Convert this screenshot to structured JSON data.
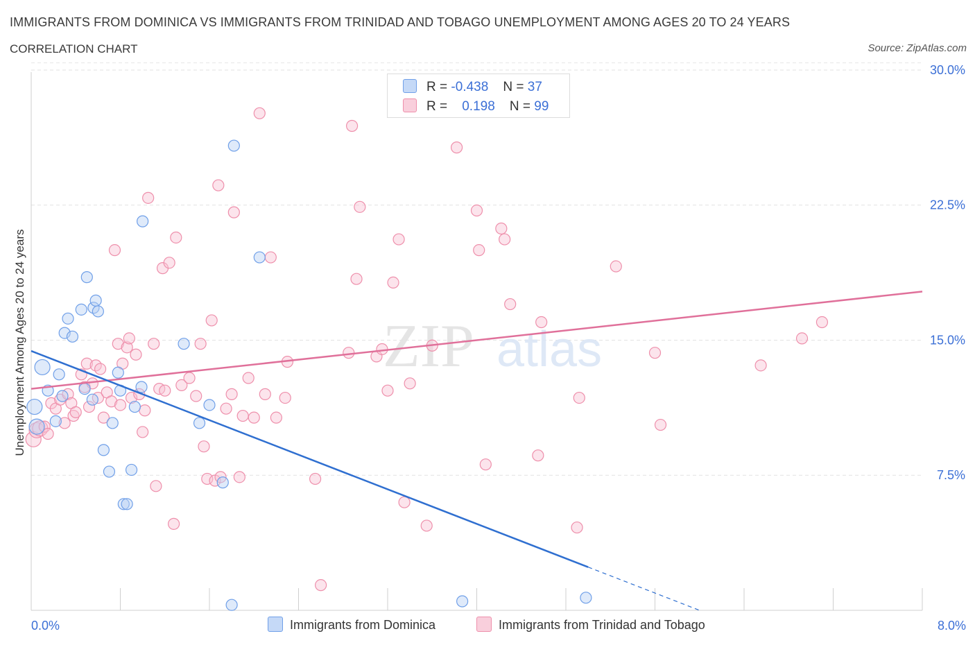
{
  "title": "IMMIGRANTS FROM DOMINICA VS IMMIGRANTS FROM TRINIDAD AND TOBAGO UNEMPLOYMENT AMONG AGES 20 TO 24 YEARS",
  "subtitle": "CORRELATION CHART",
  "source": "Source: ZipAtlas.com",
  "watermark": {
    "zip": "ZIP",
    "atlas": "atlas"
  },
  "legend": {
    "rows": [
      {
        "r_label": "R =",
        "r_value": "-0.438",
        "n_label": "N =",
        "n_value": "37"
      },
      {
        "r_label": "R =",
        "r_value": "0.198",
        "n_label": "N =",
        "n_value": "99"
      }
    ]
  },
  "bottom_legend": {
    "series1": "Immigrants from Dominica",
    "series2": "Immigrants from Trinidad and Tobago"
  },
  "chart_data": {
    "type": "scatter",
    "title": "IMMIGRANTS FROM DOMINICA VS IMMIGRANTS FROM TRINIDAD AND TOBAGO UNEMPLOYMENT AMONG AGES 20 TO 24 YEARS",
    "xlabel": "",
    "ylabel": "Unemployment Among Ages 20 to 24 years",
    "xlim": [
      0,
      8
    ],
    "ylim": [
      0,
      30.5
    ],
    "x_tick_labels": [
      "0.0%",
      "8.0%"
    ],
    "y_ticks": [
      7.5,
      15.0,
      22.5,
      30.0
    ],
    "y_tick_labels": [
      "7.5%",
      "15.0%",
      "22.5%",
      "30.0%"
    ],
    "grid": true,
    "colors": {
      "dominica": "#6f9fe8",
      "trinidad": "#ee8fab",
      "dominica_line": "#2f6fd0",
      "trinidad_line": "#e0709a",
      "tick_label": "#3b6fd6"
    },
    "series": [
      {
        "name": "Immigrants from Dominica",
        "R": -0.438,
        "N": 37,
        "trend": {
          "x0": 0.0,
          "y0": 14.4,
          "x1": 5.0,
          "y1": 2.4,
          "dash_to_x": 6.0,
          "dash_to_y": 0.0
        },
        "points": [
          [
            0.03,
            11.3
          ],
          [
            0.1,
            13.5
          ],
          [
            0.15,
            12.2
          ],
          [
            0.25,
            13.1
          ],
          [
            0.28,
            11.9
          ],
          [
            0.3,
            15.4
          ],
          [
            0.33,
            16.2
          ],
          [
            0.37,
            15.2
          ],
          [
            0.45,
            16.7
          ],
          [
            0.48,
            12.3
          ],
          [
            0.5,
            18.5
          ],
          [
            0.55,
            11.7
          ],
          [
            0.56,
            16.8
          ],
          [
            0.58,
            17.2
          ],
          [
            0.6,
            16.6
          ],
          [
            0.65,
            8.9
          ],
          [
            0.7,
            7.7
          ],
          [
            0.73,
            10.4
          ],
          [
            0.78,
            13.2
          ],
          [
            0.8,
            12.2
          ],
          [
            0.83,
            5.9
          ],
          [
            0.86,
            5.9
          ],
          [
            0.9,
            7.8
          ],
          [
            0.93,
            11.3
          ],
          [
            0.99,
            12.4
          ],
          [
            1.0,
            21.6
          ],
          [
            1.37,
            14.8
          ],
          [
            1.51,
            10.4
          ],
          [
            1.6,
            11.4
          ],
          [
            1.72,
            7.1
          ],
          [
            1.8,
            0.3
          ],
          [
            1.82,
            25.8
          ],
          [
            2.05,
            19.6
          ],
          [
            3.87,
            0.5
          ],
          [
            4.98,
            0.7
          ],
          [
            0.05,
            10.2
          ],
          [
            0.22,
            10.5
          ]
        ]
      },
      {
        "name": "Immigrants from Trinidad and Tobago",
        "R": 0.198,
        "N": 99,
        "trend": {
          "x0": 0.0,
          "y0": 12.3,
          "x1": 8.0,
          "y1": 17.7
        },
        "points": [
          [
            0.02,
            9.5
          ],
          [
            0.05,
            10.0
          ],
          [
            0.08,
            10.1
          ],
          [
            0.12,
            10.2
          ],
          [
            0.18,
            11.5
          ],
          [
            0.22,
            11.2
          ],
          [
            0.26,
            11.7
          ],
          [
            0.3,
            10.4
          ],
          [
            0.33,
            12.0
          ],
          [
            0.36,
            11.5
          ],
          [
            0.38,
            10.8
          ],
          [
            0.4,
            11.0
          ],
          [
            0.45,
            13.1
          ],
          [
            0.48,
            12.4
          ],
          [
            0.5,
            13.7
          ],
          [
            0.52,
            11.3
          ],
          [
            0.55,
            12.6
          ],
          [
            0.58,
            13.6
          ],
          [
            0.6,
            11.8
          ],
          [
            0.62,
            13.4
          ],
          [
            0.65,
            10.7
          ],
          [
            0.68,
            12.1
          ],
          [
            0.72,
            11.6
          ],
          [
            0.75,
            20.0
          ],
          [
            0.78,
            14.8
          ],
          [
            0.8,
            11.4
          ],
          [
            0.82,
            13.7
          ],
          [
            0.86,
            14.6
          ],
          [
            0.88,
            15.1
          ],
          [
            0.9,
            11.8
          ],
          [
            0.94,
            14.2
          ],
          [
            0.97,
            12.0
          ],
          [
            1.0,
            9.9
          ],
          [
            1.02,
            11.1
          ],
          [
            1.05,
            22.9
          ],
          [
            1.1,
            14.8
          ],
          [
            1.12,
            6.9
          ],
          [
            1.15,
            12.3
          ],
          [
            1.18,
            19.0
          ],
          [
            1.2,
            12.2
          ],
          [
            1.24,
            19.3
          ],
          [
            1.28,
            4.8
          ],
          [
            1.3,
            20.7
          ],
          [
            1.35,
            12.5
          ],
          [
            1.42,
            12.9
          ],
          [
            1.48,
            11.9
          ],
          [
            1.52,
            14.8
          ],
          [
            1.55,
            9.1
          ],
          [
            1.58,
            7.3
          ],
          [
            1.62,
            16.1
          ],
          [
            1.65,
            7.2
          ],
          [
            1.68,
            23.6
          ],
          [
            1.7,
            7.4
          ],
          [
            1.75,
            11.2
          ],
          [
            1.8,
            12.0
          ],
          [
            1.82,
            22.1
          ],
          [
            1.87,
            7.4
          ],
          [
            1.9,
            10.8
          ],
          [
            1.95,
            12.9
          ],
          [
            2.0,
            10.7
          ],
          [
            2.05,
            27.6
          ],
          [
            2.1,
            12.0
          ],
          [
            2.15,
            19.6
          ],
          [
            2.2,
            10.7
          ],
          [
            2.28,
            11.8
          ],
          [
            2.3,
            13.8
          ],
          [
            2.55,
            7.3
          ],
          [
            2.6,
            1.4
          ],
          [
            2.85,
            14.3
          ],
          [
            2.88,
            26.9
          ],
          [
            2.92,
            18.4
          ],
          [
            2.95,
            22.4
          ],
          [
            3.1,
            14.1
          ],
          [
            3.15,
            14.5
          ],
          [
            3.2,
            12.2
          ],
          [
            3.25,
            18.2
          ],
          [
            3.3,
            20.6
          ],
          [
            3.35,
            6.0
          ],
          [
            3.4,
            12.6
          ],
          [
            3.55,
            4.7
          ],
          [
            3.6,
            14.7
          ],
          [
            3.82,
            25.7
          ],
          [
            4.0,
            22.2
          ],
          [
            4.02,
            20.0
          ],
          [
            4.08,
            8.1
          ],
          [
            4.22,
            21.2
          ],
          [
            4.25,
            20.6
          ],
          [
            4.3,
            17.0
          ],
          [
            4.55,
            8.6
          ],
          [
            4.58,
            16.0
          ],
          [
            4.9,
            4.6
          ],
          [
            4.92,
            11.8
          ],
          [
            5.25,
            19.1
          ],
          [
            5.6,
            14.3
          ],
          [
            5.65,
            10.3
          ],
          [
            6.55,
            13.6
          ],
          [
            6.92,
            15.1
          ],
          [
            7.1,
            16.0
          ],
          [
            0.15,
            9.8
          ]
        ]
      }
    ]
  }
}
